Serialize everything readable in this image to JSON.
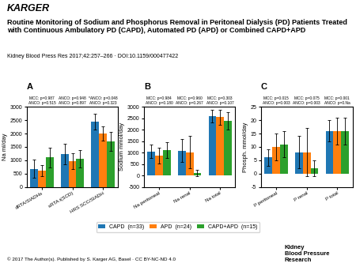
{
  "publisher": "KARGER",
  "title": "Routine Monitoring of Sodium and Phosphorus Removal in Peritoneal Dialysis (PD) Patients Treated with Continuous Ambulatory PD (CAPD), Automated PD (APD) or Combined CAPD+APD",
  "subtitle": "Kidney Blood Press Res 2017;42:257–266 · DOI:10.1159/000477422",
  "footer": [
    "© 2017 The Author(s). Published by S. Karger AG, Basel · CC BY-NC-ND 4.0",
    "Kidney\nBlood Pressure\nResearch"
  ],
  "legend": "lower center",
  "chart_data": [
    {
      "type": "bar",
      "title": "A",
      "y_label": "Na ml/day",
      "categories": [
        "dRTA/SIADHs",
        "sRTA t(SCD)",
        "HRS SCC/SIADH"
      ],
      "series": [
        {
          "name": "CAPD  (n=33)",
          "values": [
            680,
            1230,
            2450
          ],
          "errors": [
            350,
            380,
            300
          ]
        },
        {
          "name": "APD  (n=24)",
          "values": [
            610,
            970,
            2000
          ],
          "errors": [
            200,
            300,
            280
          ]
        },
        {
          "name": "CAPD+APD  (n=15)",
          "values": [
            1100,
            1050,
            1700
          ],
          "errors": [
            380,
            320,
            350
          ]
        }
      ],
      "ylim": [
        0,
        3000
      ],
      "yticks": [
        0,
        500,
        1000,
        1500,
        2000,
        2500,
        3000
      ],
      "annotations": [
        {
          "category": "dRTA/SIADHs",
          "texts": [
            "MCC: p=0.987",
            "ANCO: p=0.515"
          ]
        },
        {
          "category": "sRTA t(SCD)",
          "texts": [
            "ANCO: p=0.948",
            "ANCO: p=0.897"
          ]
        },
        {
          "category": "HRS SCC/SIADH",
          "texts": [
            "*ANCO: p=0.048",
            "ANCO: p=0.323"
          ]
        }
      ]
    },
    {
      "type": "bar",
      "title": "B",
      "y_label": "Sodium mmol/day",
      "categories": [
        "Na peritoneal",
        "Na renal",
        "Na total"
      ],
      "series": [
        {
          "name": "CAPD  (n=33)",
          "values": [
            1050,
            1080,
            2600
          ],
          "errors": [
            300,
            500,
            280
          ]
        },
        {
          "name": "APD  (n=24)",
          "values": [
            870,
            1020,
            2550
          ],
          "errors": [
            350,
            700,
            320
          ]
        },
        {
          "name": "CAPD+APD  (n=15)",
          "values": [
            1100,
            100,
            2400
          ],
          "errors": [
            350,
            130,
            380
          ]
        }
      ],
      "ylim": [
        -500,
        3000
      ],
      "yticks": [
        -500,
        0,
        500,
        1000,
        1500,
        2000,
        2500,
        3000
      ],
      "annotations": [
        {
          "category": "Na peritoneal",
          "texts": [
            "MCC: p=0.984",
            "ANCO: p=0.180"
          ]
        },
        {
          "category": "Na renal",
          "texts": [
            "MCC: p=0.960",
            "ANCO: p=0.267"
          ]
        },
        {
          "category": "Na total",
          "texts": [
            "MCC: p=0.303",
            "ANCO: p=0.107"
          ]
        }
      ]
    },
    {
      "type": "bar",
      "title": "C",
      "y_label": "Phosph. mmol/day",
      "categories": [
        "P peritoneal",
        "P renal",
        "P total"
      ],
      "series": [
        {
          "name": "CAPD  (n=33)",
          "values": [
            6,
            8,
            16
          ],
          "errors": [
            3,
            6,
            4
          ]
        },
        {
          "name": "APD  (n=24)",
          "values": [
            10,
            8,
            16
          ],
          "errors": [
            5,
            9,
            5
          ]
        },
        {
          "name": "CAPD+APD  (n=15)",
          "values": [
            11,
            2,
            16
          ],
          "errors": [
            5,
            3,
            5
          ]
        }
      ],
      "ylim": [
        -5,
        25
      ],
      "yticks": [
        -5,
        0,
        5,
        10,
        15,
        20,
        25
      ],
      "annotations": [
        {
          "category": "P peritoneal",
          "texts": [
            "MCC: p=0.015",
            "ANCO: p=0.003"
          ]
        },
        {
          "category": "P renal",
          "texts": [
            "MCC: p=0.075",
            "ANCO: p=0.003"
          ]
        },
        {
          "category": "P total",
          "texts": [
            "MCC: p=0.001",
            "ANCO: p=0.Na"
          ]
        }
      ]
    }
  ]
}
